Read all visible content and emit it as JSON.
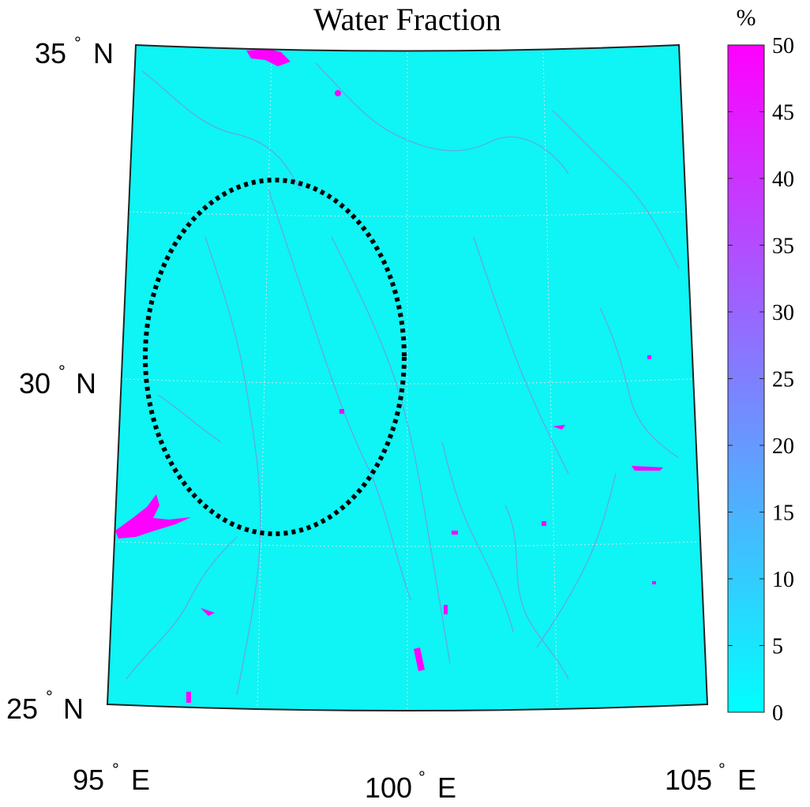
{
  "title": "Water Fraction",
  "colorbar": {
    "unit": "%",
    "min": 0,
    "max": 50,
    "ticks": [
      "0",
      "5",
      "10",
      "15",
      "20",
      "25",
      "30",
      "35",
      "40",
      "45",
      "50"
    ],
    "color_low": "#00ffff",
    "color_high": "#ff00ff"
  },
  "map": {
    "background_color": "#0ff4f4",
    "water_color": "#ff00ff",
    "lat_range": [
      25,
      35
    ],
    "lon_range": [
      95,
      105
    ],
    "lat_labels": [
      {
        "deg": "35",
        "hemi": "N"
      },
      {
        "deg": "30",
        "hemi": "N"
      },
      {
        "deg": "25",
        "hemi": "N"
      }
    ],
    "lon_labels": [
      {
        "deg": "95",
        "hemi": "E"
      },
      {
        "deg": "100",
        "hemi": "E"
      },
      {
        "deg": "105",
        "hemi": "E"
      }
    ],
    "degree_symbol": "°",
    "annotation": "dotted ellipse highlighting a region",
    "grid": "dotted"
  }
}
